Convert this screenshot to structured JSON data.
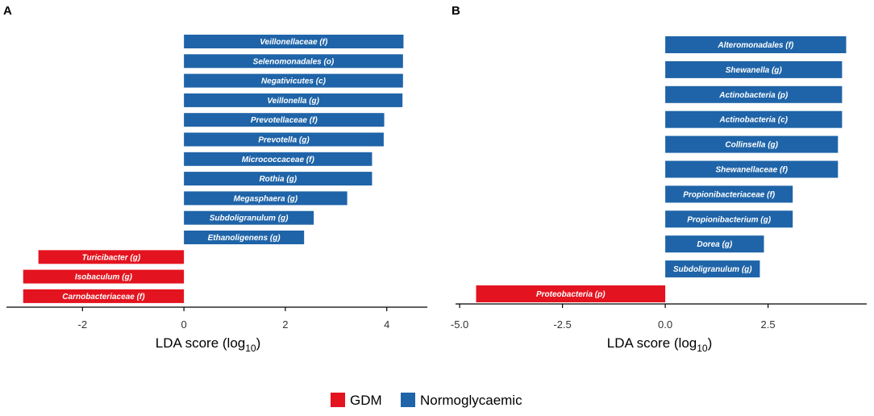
{
  "colors": {
    "gdm": "#e3141f",
    "normoglycaemic": "#1f64a8"
  },
  "legend": {
    "gdm_label": "GDM",
    "normo_label": "Normoglycaemic"
  },
  "chart_data": [
    {
      "type": "bar",
      "orientation": "horizontal",
      "panel": "A",
      "xlabel": "LDA score (log10)",
      "xlim": [
        -3.5,
        4.8
      ],
      "ticks": [
        -2,
        0,
        2,
        4
      ],
      "tick_labels": [
        "-2",
        "0",
        "2",
        "4"
      ],
      "categories": [
        "Veillonellaceae (f)",
        "Selenomonadales (o)",
        "Negativicutes (c)",
        "Veillonella (g)",
        "Prevotellaceae (f)",
        "Prevotella (g)",
        "Micrococcaceae (f)",
        "Rothia (g)",
        "Megasphaera (g)",
        "Subdoligranulum (g)",
        "Ethanoligenens (g)",
        "Turicibacter (g)",
        "Isobaculum (g)",
        "Carnobacteriaceae (f)"
      ],
      "values": [
        4.33,
        4.32,
        4.32,
        4.31,
        3.95,
        3.94,
        3.71,
        3.71,
        3.22,
        2.56,
        2.37,
        -2.87,
        -3.17,
        -3.17
      ],
      "groups": [
        "Normoglycaemic",
        "Normoglycaemic",
        "Normoglycaemic",
        "Normoglycaemic",
        "Normoglycaemic",
        "Normoglycaemic",
        "Normoglycaemic",
        "Normoglycaemic",
        "Normoglycaemic",
        "Normoglycaemic",
        "Normoglycaemic",
        "GDM",
        "GDM",
        "GDM"
      ]
    },
    {
      "type": "bar",
      "orientation": "horizontal",
      "panel": "B",
      "xlabel": "LDA score (log10)",
      "xlim": [
        -5.1,
        4.9
      ],
      "ticks": [
        -5.0,
        -2.5,
        0.0,
        2.5
      ],
      "tick_labels": [
        "-5.0",
        "-2.5",
        "0.0",
        "2.5"
      ],
      "categories": [
        "Alteromonadales (f)",
        "Shewanella (g)",
        "Actinobacteria (p)",
        "Actinobacteria (c)",
        "Collinsella (g)",
        "Shewanellaceae (f)",
        "Propionibacteriaceae (f)",
        "Propionibacterium (g)",
        "Dorea (g)",
        "Subdoligranulum (g)",
        "Proteobacteria (p)"
      ],
      "values": [
        4.4,
        4.3,
        4.3,
        4.3,
        4.2,
        4.2,
        3.1,
        3.1,
        2.4,
        2.3,
        -4.6
      ],
      "groups": [
        "Normoglycaemic",
        "Normoglycaemic",
        "Normoglycaemic",
        "Normoglycaemic",
        "Normoglycaemic",
        "Normoglycaemic",
        "Normoglycaemic",
        "Normoglycaemic",
        "Normoglycaemic",
        "Normoglycaemic",
        "GDM"
      ]
    }
  ]
}
